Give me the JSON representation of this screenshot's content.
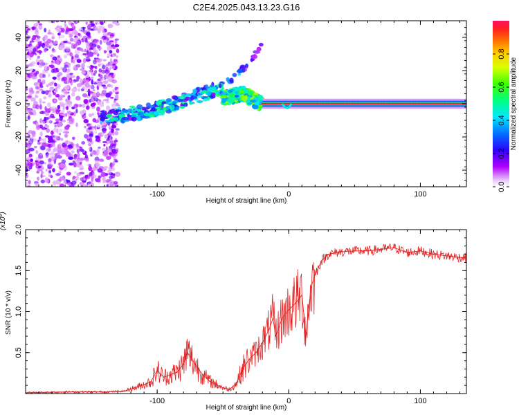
{
  "title": "C2E4.2025.043.13.23.G16",
  "chart_data": [
    {
      "type": "heatmap",
      "name": "spectrogram",
      "xlabel": "Height of straight line (km)",
      "ylabel": "Frequency (Hz)",
      "xlim": [
        -200,
        135
      ],
      "ylim": [
        -50,
        50
      ],
      "xticks": [
        -100,
        0,
        100
      ],
      "yticks": [
        -40,
        -20,
        0,
        20,
        40
      ],
      "colorbar": {
        "label": "Normalized spectral amplitude",
        "range": [
          0,
          1
        ],
        "ticks": [
          0.0,
          0.2,
          0.4,
          0.6,
          0.8
        ]
      },
      "features": [
        {
          "segment": "noise",
          "x_range": [
            -200,
            -130
          ],
          "freq_range": [
            -50,
            50
          ],
          "amplitude": 0.15
        },
        {
          "segment": "rising_track",
          "x": [
            -143,
            -120,
            -100,
            -80,
            -60,
            -50
          ],
          "freq": [
            -8,
            -6,
            -3,
            2,
            7,
            11
          ],
          "amplitude": 0.35
        },
        {
          "segment": "upper_branch",
          "x": [
            -50,
            -40,
            -30,
            -20
          ],
          "freq": [
            11,
            17,
            25,
            36
          ],
          "amplitude": 0.2
        },
        {
          "segment": "hump",
          "x": [
            -50,
            -35,
            -28,
            -20
          ],
          "freq": [
            3,
            6,
            3,
            0
          ],
          "amplitude": 0.5
        },
        {
          "segment": "stable_track",
          "x": [
            -20,
            135
          ],
          "freq": [
            0,
            0
          ],
          "amplitude": 0.95
        }
      ]
    },
    {
      "type": "line",
      "name": "snr",
      "xlabel": "Height of straight line (km)",
      "ylabel": "SNR (10 * v/v)",
      "scale_label": "(x10",
      "scale_exp": "4",
      "scale_close": ")",
      "xlim": [
        -200,
        135
      ],
      "ylim": [
        0,
        2.0
      ],
      "xticks": [
        -100,
        0,
        100
      ],
      "yticks": [
        0.5,
        1.0,
        1.5,
        2.0
      ],
      "series": [
        {
          "name": "SNR",
          "color": "#e02020",
          "x": [
            -200,
            -170,
            -140,
            -125,
            -115,
            -105,
            -100,
            -95,
            -85,
            -80,
            -77,
            -70,
            -65,
            -60,
            -50,
            -45,
            -40,
            -35,
            -30,
            -25,
            -20,
            -15,
            -12,
            -10,
            -5,
            0,
            5,
            10,
            13,
            17,
            20,
            25,
            30,
            40,
            50,
            60,
            70,
            80,
            90,
            100,
            110,
            120,
            130,
            135
          ],
          "values": [
            0.01,
            0.02,
            0.02,
            0.03,
            0.08,
            0.14,
            0.28,
            0.2,
            0.26,
            0.36,
            0.5,
            0.33,
            0.22,
            0.15,
            0.07,
            0.05,
            0.12,
            0.3,
            0.42,
            0.5,
            0.62,
            0.78,
            0.92,
            0.7,
            0.92,
            1.02,
            1.1,
            1.2,
            0.72,
            1.3,
            1.45,
            1.62,
            1.7,
            1.73,
            1.74,
            1.74,
            1.76,
            1.78,
            1.72,
            1.74,
            1.7,
            1.68,
            1.66,
            1.66
          ]
        }
      ]
    }
  ]
}
